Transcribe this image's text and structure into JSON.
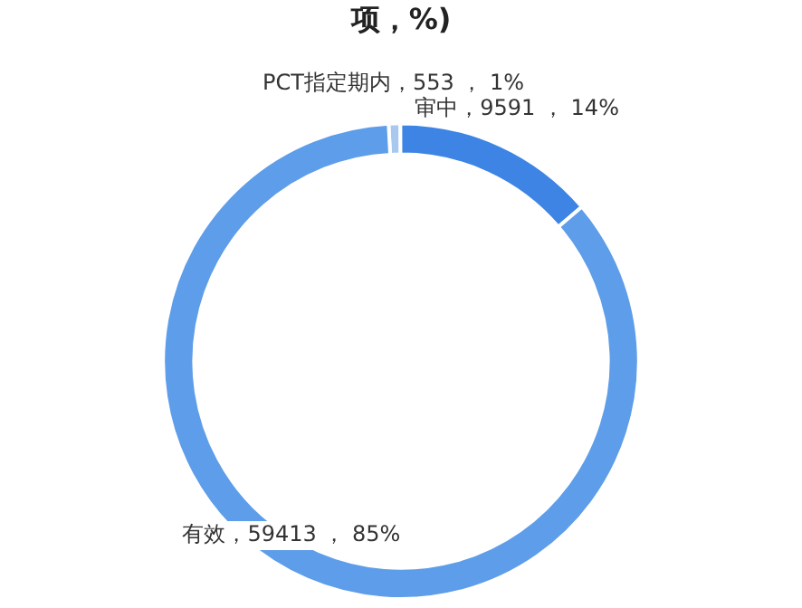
{
  "chart_data": {
    "type": "donut",
    "title": "项，%)",
    "categories": [
      "PCT指定期内",
      "审中",
      "有效"
    ],
    "values": [
      553,
      9591,
      59413
    ],
    "value_labels": [
      "553 ， 1%",
      "9591 ， 14%",
      "59413 ， 85%"
    ],
    "colors": [
      "#a9c8f0",
      "#3d84e4",
      "#5e9de9"
    ],
    "legend": false
  }
}
